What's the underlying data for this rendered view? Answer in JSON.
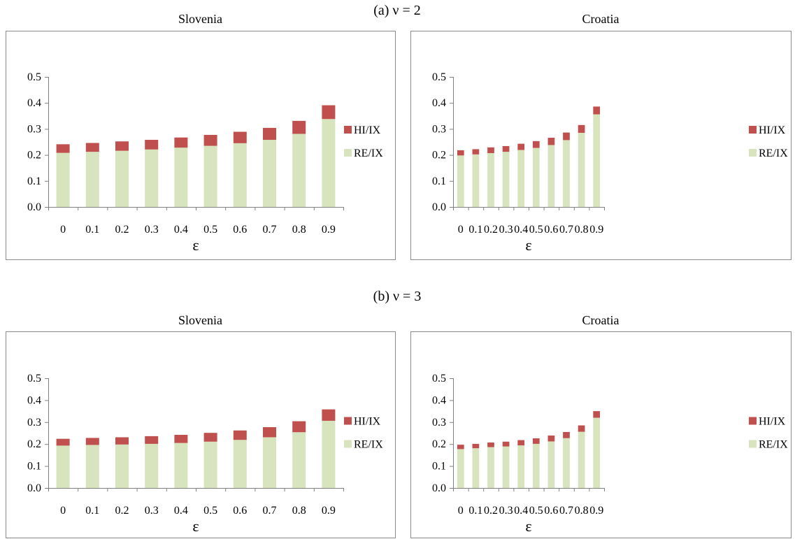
{
  "panels": [
    {
      "title": "(a)  ν = 2",
      "charts": [
        {
          "type": "bar",
          "stacked": true,
          "title": "Slovenia",
          "xlabel": "ε",
          "ylabel": "",
          "categories": [
            "0",
            "0.1",
            "0.2",
            "0.3",
            "0.4",
            "0.5",
            "0.6",
            "0.7",
            "0.8",
            "0.9"
          ],
          "yticks": [
            "0.0",
            "0.1",
            "0.2",
            "0.3",
            "0.4",
            "0.5"
          ],
          "ylim": [
            0,
            0.5
          ],
          "grid": false,
          "legend_position": "right",
          "series": [
            {
              "name": "RE/IX",
              "color": "#d7e4bd",
              "values": [
                0.208,
                0.212,
                0.216,
                0.221,
                0.228,
                0.235,
                0.245,
                0.258,
                0.281,
                0.338
              ]
            },
            {
              "name": "HI/IX",
              "color": "#c0504d",
              "values": [
                0.033,
                0.034,
                0.036,
                0.037,
                0.039,
                0.042,
                0.044,
                0.046,
                0.05,
                0.053
              ]
            }
          ]
        },
        {
          "type": "bar",
          "stacked": true,
          "title": "Croatia",
          "xlabel": "ε",
          "ylabel": "",
          "categories": [
            "0",
            "0.1",
            "0.2",
            "0.3",
            "0.4",
            "0.5",
            "0.6",
            "0.7",
            "0.8",
            "0.9"
          ],
          "yticks": [
            "0.0",
            "0.1",
            "0.2",
            "0.3",
            "0.4",
            "0.5"
          ],
          "ylim": [
            0,
            0.5
          ],
          "grid": false,
          "legend_position": "right",
          "series": [
            {
              "name": "RE/IX",
              "color": "#d7e4bd",
              "values": [
                0.198,
                0.202,
                0.207,
                0.212,
                0.219,
                0.227,
                0.238,
                0.257,
                0.285,
                0.356
              ]
            },
            {
              "name": "HI/IX",
              "color": "#c0504d",
              "values": [
                0.02,
                0.02,
                0.022,
                0.022,
                0.024,
                0.026,
                0.028,
                0.029,
                0.03,
                0.03
              ]
            }
          ]
        }
      ]
    },
    {
      "title": "(b)  ν = 3",
      "charts": [
        {
          "type": "bar",
          "stacked": true,
          "title": "Slovenia",
          "xlabel": "ε",
          "ylabel": "",
          "categories": [
            "0",
            "0.1",
            "0.2",
            "0.3",
            "0.4",
            "0.5",
            "0.6",
            "0.7",
            "0.8",
            "0.9"
          ],
          "yticks": [
            "0.0",
            "0.1",
            "0.2",
            "0.3",
            "0.4",
            "0.5"
          ],
          "ylim": [
            0,
            0.5
          ],
          "grid": false,
          "legend_position": "right",
          "series": [
            {
              "name": "RE/IX",
              "color": "#d7e4bd",
              "values": [
                0.193,
                0.196,
                0.198,
                0.201,
                0.205,
                0.211,
                0.219,
                0.231,
                0.254,
                0.306
              ]
            },
            {
              "name": "HI/IX",
              "color": "#c0504d",
              "values": [
                0.031,
                0.032,
                0.033,
                0.035,
                0.037,
                0.04,
                0.043,
                0.046,
                0.05,
                0.052
              ]
            }
          ]
        },
        {
          "type": "bar",
          "stacked": true,
          "title": "Croatia",
          "xlabel": "ε",
          "ylabel": "",
          "categories": [
            "0",
            "0.1",
            "0.2",
            "0.3",
            "0.4",
            "0.5",
            "0.6",
            "0.7",
            "0.8",
            "0.9"
          ],
          "yticks": [
            "0.0",
            "0.1",
            "0.2",
            "0.3",
            "0.4",
            "0.5"
          ],
          "ylim": [
            0,
            0.5
          ],
          "grid": false,
          "legend_position": "right",
          "series": [
            {
              "name": "RE/IX",
              "color": "#d7e4bd",
              "values": [
                0.177,
                0.181,
                0.186,
                0.189,
                0.194,
                0.201,
                0.212,
                0.227,
                0.256,
                0.32
              ]
            },
            {
              "name": "HI/IX",
              "color": "#c0504d",
              "values": [
                0.02,
                0.02,
                0.021,
                0.022,
                0.024,
                0.025,
                0.027,
                0.028,
                0.029,
                0.03
              ]
            }
          ]
        }
      ]
    }
  ],
  "chart_data": [
    {
      "type": "bar",
      "title": "Slovenia",
      "xlabel": "ε",
      "ylim": [
        0,
        0.5
      ],
      "categories": [
        "0",
        "0.1",
        "0.2",
        "0.3",
        "0.4",
        "0.5",
        "0.6",
        "0.7",
        "0.8",
        "0.9"
      ],
      "series": [
        {
          "name": "RE/IX",
          "values": [
            0.208,
            0.212,
            0.216,
            0.221,
            0.228,
            0.235,
            0.245,
            0.258,
            0.281,
            0.338
          ]
        },
        {
          "name": "HI/IX",
          "values": [
            0.033,
            0.034,
            0.036,
            0.037,
            0.039,
            0.042,
            0.044,
            0.046,
            0.05,
            0.053
          ]
        }
      ]
    },
    {
      "type": "bar",
      "title": "Croatia",
      "xlabel": "ε",
      "ylim": [
        0,
        0.5
      ],
      "categories": [
        "0",
        "0.1",
        "0.2",
        "0.3",
        "0.4",
        "0.5",
        "0.6",
        "0.7",
        "0.8",
        "0.9"
      ],
      "series": [
        {
          "name": "RE/IX",
          "values": [
            0.198,
            0.202,
            0.207,
            0.212,
            0.219,
            0.227,
            0.238,
            0.257,
            0.285,
            0.356
          ]
        },
        {
          "name": "HI/IX",
          "values": [
            0.02,
            0.02,
            0.022,
            0.022,
            0.024,
            0.026,
            0.028,
            0.029,
            0.03,
            0.03
          ]
        }
      ]
    },
    {
      "type": "bar",
      "title": "Slovenia",
      "xlabel": "ε",
      "ylim": [
        0,
        0.5
      ],
      "categories": [
        "0",
        "0.1",
        "0.2",
        "0.3",
        "0.4",
        "0.5",
        "0.6",
        "0.7",
        "0.8",
        "0.9"
      ],
      "series": [
        {
          "name": "RE/IX",
          "values": [
            0.193,
            0.196,
            0.198,
            0.201,
            0.205,
            0.211,
            0.219,
            0.231,
            0.254,
            0.306
          ]
        },
        {
          "name": "HI/IX",
          "values": [
            0.031,
            0.032,
            0.033,
            0.035,
            0.037,
            0.04,
            0.043,
            0.046,
            0.05,
            0.052
          ]
        }
      ]
    },
    {
      "type": "bar",
      "title": "Croatia",
      "xlabel": "ε",
      "ylim": [
        0,
        0.5
      ],
      "categories": [
        "0",
        "0.1",
        "0.2",
        "0.3",
        "0.4",
        "0.5",
        "0.6",
        "0.7",
        "0.8",
        "0.9"
      ],
      "series": [
        {
          "name": "RE/IX",
          "values": [
            0.177,
            0.181,
            0.186,
            0.189,
            0.194,
            0.201,
            0.212,
            0.227,
            0.256,
            0.32
          ]
        },
        {
          "name": "HI/IX",
          "values": [
            0.02,
            0.02,
            0.021,
            0.022,
            0.024,
            0.025,
            0.027,
            0.028,
            0.029,
            0.03
          ]
        }
      ]
    }
  ]
}
